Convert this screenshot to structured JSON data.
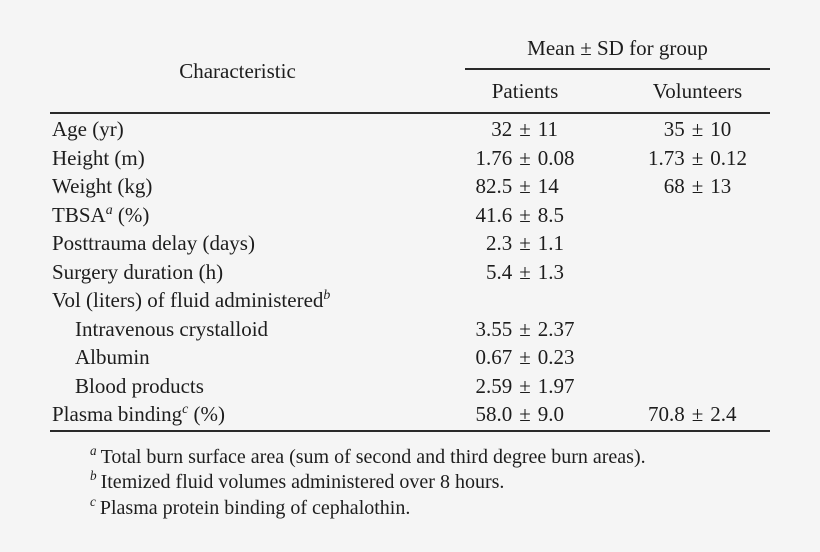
{
  "theme": {
    "background": "#f5f5f5",
    "text": "#1d1d1d",
    "rule": "#2a2a2a"
  },
  "table": {
    "header": {
      "characteristic": "Characteristic",
      "spanner": "Mean ± SD for group",
      "col_patients": "Patients",
      "col_volunteers": "Volunteers"
    },
    "rows": [
      {
        "label": "Age (yr)",
        "sup": "",
        "tail": "",
        "patients": {
          "mean": "32",
          "pm": "±",
          "sd": "11"
        },
        "volunteers": {
          "mean": "35",
          "pm": "±",
          "sd": "10"
        }
      },
      {
        "label": "Height (m)",
        "sup": "",
        "tail": "",
        "patients": {
          "mean": "1.76",
          "pm": "±",
          "sd": "0.08"
        },
        "volunteers": {
          "mean": "1.73",
          "pm": "±",
          "sd": "0.12"
        }
      },
      {
        "label": "Weight (kg)",
        "sup": "",
        "tail": "",
        "patients": {
          "mean": "82.5",
          "pm": "±",
          "sd": "14"
        },
        "volunteers": {
          "mean": "68",
          "pm": "±",
          "sd": "13"
        }
      },
      {
        "label": "TBSA",
        "sup": "a",
        "tail": " (%)",
        "patients": {
          "mean": "41.6",
          "pm": "±",
          "sd": "8.5"
        },
        "volunteers": {
          "mean": "",
          "pm": "",
          "sd": ""
        }
      },
      {
        "label": "Posttrauma delay (days)",
        "sup": "",
        "tail": "",
        "patients": {
          "mean": "2.3",
          "pm": "±",
          "sd": "1.1"
        },
        "volunteers": {
          "mean": "",
          "pm": "",
          "sd": ""
        }
      },
      {
        "label": "Surgery duration (h)",
        "sup": "",
        "tail": "",
        "patients": {
          "mean": "5.4",
          "pm": "±",
          "sd": "1.3"
        },
        "volunteers": {
          "mean": "",
          "pm": "",
          "sd": ""
        }
      },
      {
        "label": "Vol (liters) of fluid administered",
        "sup": "b",
        "tail": "",
        "patients": {
          "mean": "",
          "pm": "",
          "sd": ""
        },
        "volunteers": {
          "mean": "",
          "pm": "",
          "sd": ""
        }
      },
      {
        "label": "Intravenous crystalloid",
        "sup": "",
        "tail": "",
        "patients": {
          "mean": "3.55",
          "pm": "±",
          "sd": "2.37"
        },
        "volunteers": {
          "mean": "",
          "pm": "",
          "sd": ""
        }
      },
      {
        "label": "Albumin",
        "sup": "",
        "tail": "",
        "patients": {
          "mean": "0.67",
          "pm": "±",
          "sd": "0.23"
        },
        "volunteers": {
          "mean": "",
          "pm": "",
          "sd": ""
        }
      },
      {
        "label": "Blood products",
        "sup": "",
        "tail": "",
        "patients": {
          "mean": "2.59",
          "pm": "±",
          "sd": "1.97"
        },
        "volunteers": {
          "mean": "",
          "pm": "",
          "sd": ""
        }
      },
      {
        "label": "Plasma binding",
        "sup": "c",
        "tail": " (%)",
        "patients": {
          "mean": "58.0",
          "pm": "±",
          "sd": "9.0"
        },
        "volunteers": {
          "mean": "70.8",
          "pm": "±",
          "sd": "2.4"
        }
      }
    ],
    "footnotes": [
      {
        "marker": "a",
        "text": "Total burn surface area (sum of second and third degree burn areas)."
      },
      {
        "marker": "b",
        "text": "Itemized fluid volumes administered over 8 hours."
      },
      {
        "marker": "c",
        "text": "Plasma protein binding of cephalothin."
      }
    ]
  }
}
